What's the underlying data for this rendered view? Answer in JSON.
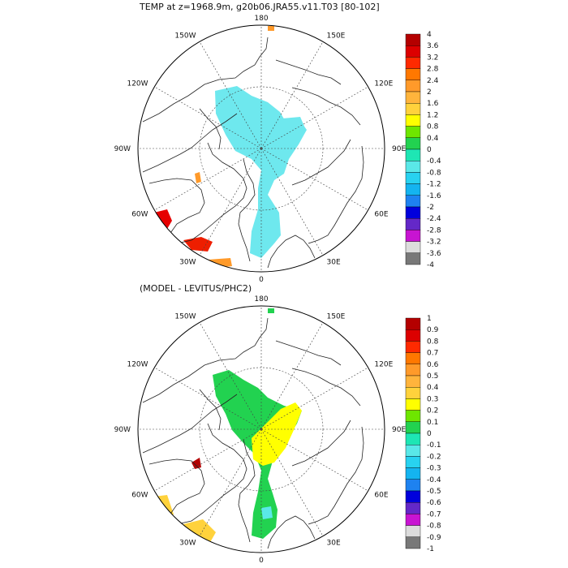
{
  "figure": {
    "title": "TEMP at z=1968.9m, g20b06.JRA55.v11.T03 [80-102]",
    "subtitle": "(MODEL - LEVITUS/PHC2)"
  },
  "panels": [
    {
      "id": "model",
      "lon_labels": [
        "180",
        "150E",
        "120E",
        "90E",
        "60E",
        "30E",
        "0",
        "30W",
        "60W",
        "90W",
        "120W",
        "150W"
      ],
      "colorbar": {
        "labels": [
          "4",
          "3.6",
          "3.2",
          "2.8",
          "2.4",
          "2",
          "1.6",
          "1.2",
          "0.8",
          "0.4",
          "0",
          "-0.4",
          "-0.8",
          "-1.2",
          "-1.6",
          "-2",
          "-2.4",
          "-2.8",
          "-3.2",
          "-3.6",
          "-4"
        ],
        "colors": [
          "#b40000",
          "#dc0000",
          "#ff2a00",
          "#ff7800",
          "#ff9a2a",
          "#ffb43c",
          "#ffd23c",
          "#ffff00",
          "#6ee600",
          "#22d250",
          "#1ee6b4",
          "#5ae8e8",
          "#28d2f0",
          "#14b4f0",
          "#1e82f0",
          "#0000dc",
          "#6428c8",
          "#c814d2",
          "#dcdcdc",
          "#787878"
        ]
      }
    },
    {
      "id": "difference",
      "lon_labels": [
        "180",
        "150E",
        "120E",
        "90E",
        "60E",
        "30E",
        "0",
        "30W",
        "60W",
        "90W",
        "120W",
        "150W"
      ],
      "colorbar": {
        "labels": [
          "1",
          "0.9",
          "0.8",
          "0.7",
          "0.6",
          "0.5",
          "0.4",
          "0.3",
          "0.2",
          "0.1",
          "0",
          "-0.1",
          "-0.2",
          "-0.3",
          "-0.4",
          "-0.5",
          "-0.6",
          "-0.7",
          "-0.8",
          "-0.9",
          "-1"
        ],
        "colors": [
          "#b40000",
          "#dc0000",
          "#ff2a00",
          "#ff7800",
          "#ff9a2a",
          "#ffb43c",
          "#ffd23c",
          "#ffff00",
          "#6ee600",
          "#22d250",
          "#1ee6b4",
          "#5ae8e8",
          "#28d2f0",
          "#14b4f0",
          "#1e82f0",
          "#0000dc",
          "#6428c8",
          "#c814d2",
          "#dcdcdc",
          "#787878"
        ]
      }
    }
  ]
}
